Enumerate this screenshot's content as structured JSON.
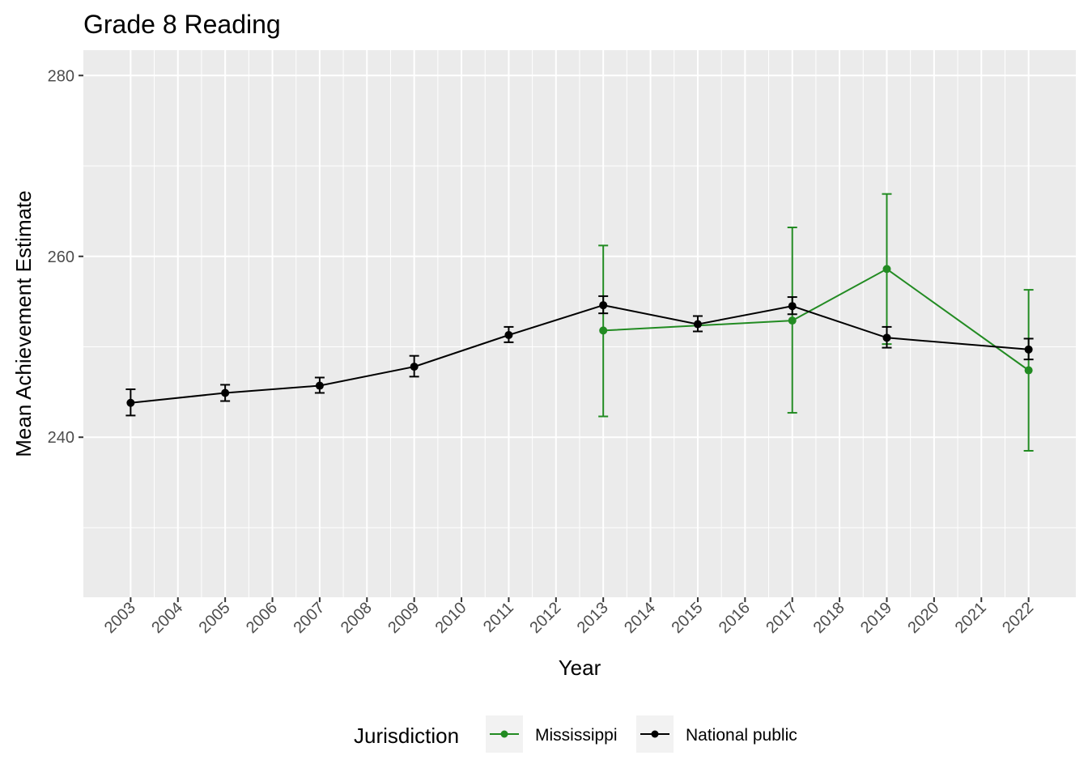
{
  "chart_data": {
    "type": "line",
    "title": "Grade 8 Reading",
    "xlabel": "Year",
    "ylabel": "Mean Achievement Estimate",
    "x_ticks": [
      "2003",
      "2004",
      "2005",
      "2006",
      "2007",
      "2008",
      "2009",
      "2010",
      "2011",
      "2012",
      "2013",
      "2014",
      "2015",
      "2016",
      "2017",
      "2018",
      "2019",
      "2020",
      "2021",
      "2022"
    ],
    "y_ticks": [
      240,
      260,
      280
    ],
    "xlim": [
      2002.0,
      2023.0
    ],
    "ylim": [
      222.3,
      282.8
    ],
    "grid": true,
    "legend": {
      "title": "Jurisdiction",
      "position": "bottom"
    },
    "series": [
      {
        "name": "Mississippi",
        "color": "#228B22",
        "points": [
          {
            "x": 2013,
            "y": 251.8,
            "lo": 242.3,
            "hi": 261.2
          },
          {
            "x": 2017,
            "y": 252.9,
            "lo": 242.7,
            "hi": 263.2
          },
          {
            "x": 2019,
            "y": 258.6,
            "lo": 250.3,
            "hi": 266.9
          },
          {
            "x": 2022,
            "y": 247.4,
            "lo": 238.5,
            "hi": 256.3
          }
        ]
      },
      {
        "name": "National public",
        "color": "#000000",
        "points": [
          {
            "x": 2003,
            "y": 243.8,
            "lo": 242.4,
            "hi": 245.3
          },
          {
            "x": 2005,
            "y": 244.9,
            "lo": 244.0,
            "hi": 245.8
          },
          {
            "x": 2007,
            "y": 245.7,
            "lo": 244.9,
            "hi": 246.6
          },
          {
            "x": 2009,
            "y": 247.8,
            "lo": 246.7,
            "hi": 249.0
          },
          {
            "x": 2011,
            "y": 251.3,
            "lo": 250.5,
            "hi": 252.2
          },
          {
            "x": 2013,
            "y": 254.6,
            "lo": 253.7,
            "hi": 255.6
          },
          {
            "x": 2015,
            "y": 252.5,
            "lo": 251.7,
            "hi": 253.4
          },
          {
            "x": 2017,
            "y": 254.5,
            "lo": 253.6,
            "hi": 255.5
          },
          {
            "x": 2019,
            "y": 251.0,
            "lo": 249.9,
            "hi": 252.2
          },
          {
            "x": 2022,
            "y": 249.7,
            "lo": 248.6,
            "hi": 250.9
          }
        ]
      }
    ]
  }
}
